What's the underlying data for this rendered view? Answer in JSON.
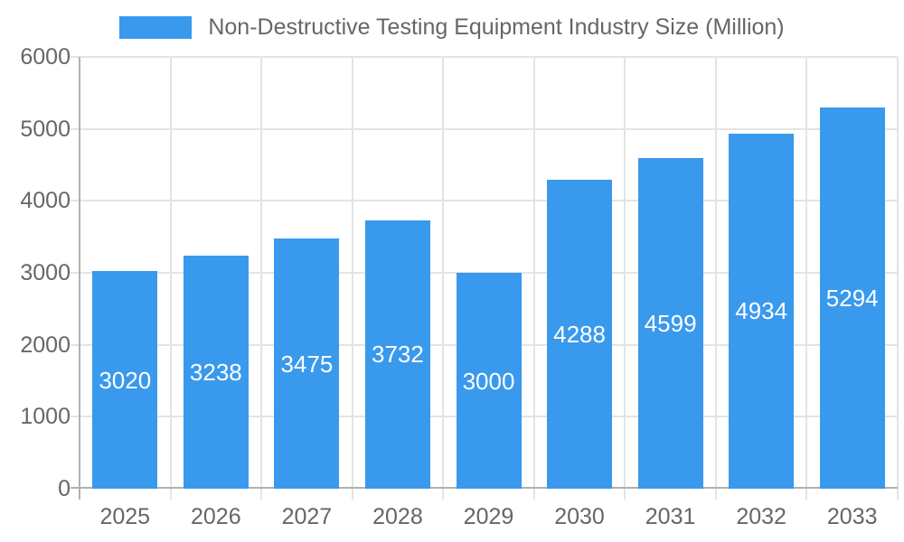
{
  "chart_data": {
    "type": "bar",
    "title": "Non-Destructive Testing Equipment Industry Size (Million)",
    "legend": {
      "label": "Non-Destructive Testing Equipment Industry Size (Million)",
      "position": "top"
    },
    "categories": [
      "2025",
      "2026",
      "2027",
      "2028",
      "2029",
      "2030",
      "2031",
      "2032",
      "2033"
    ],
    "values": [
      3020,
      3238,
      3475,
      3732,
      3000,
      4288,
      4599,
      4934,
      5294
    ],
    "xlabel": "",
    "ylabel": "",
    "ylim": [
      0,
      6000
    ],
    "ytick_interval": 1000,
    "yticks": [
      "0",
      "1000",
      "2000",
      "3000",
      "4000",
      "5000",
      "6000"
    ],
    "grid": true,
    "bar_value_labels": "centered-white",
    "colors": {
      "bar": "#3999ED",
      "bar_label": "#FFFFFF",
      "axis_text": "#666666",
      "gridline": "#E4E4E4",
      "axis_line": "#B1B1B1",
      "background": "#FFFFFF"
    }
  }
}
